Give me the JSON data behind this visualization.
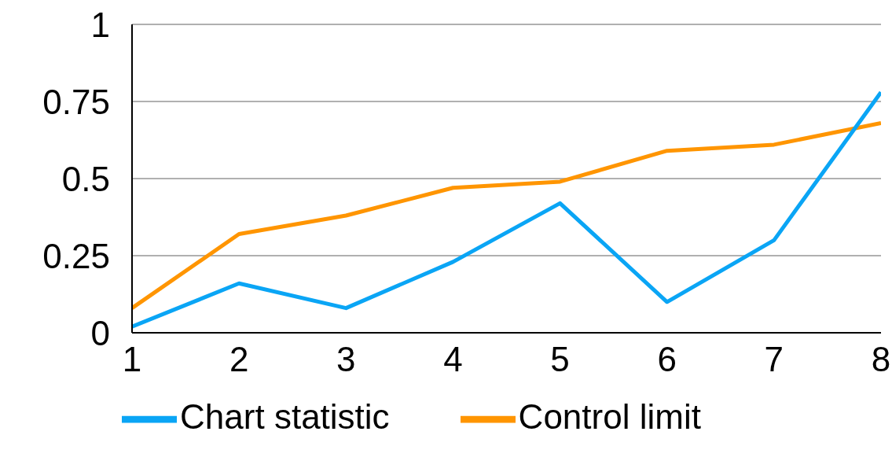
{
  "chart_data": {
    "type": "line",
    "x": [
      1,
      2,
      3,
      4,
      5,
      6,
      7,
      8
    ],
    "series": [
      {
        "name": "Control limit",
        "color": "#ff9500",
        "values": [
          0.08,
          0.32,
          0.38,
          0.47,
          0.49,
          0.59,
          0.61,
          0.68
        ]
      },
      {
        "name": "Chart statistic",
        "color": "#0aa5f5",
        "values": [
          0.02,
          0.16,
          0.08,
          0.23,
          0.42,
          0.1,
          0.3,
          0.78
        ]
      }
    ],
    "xlim": [
      1,
      8
    ],
    "xticks": [
      1,
      2,
      3,
      4,
      5,
      6,
      7,
      8
    ],
    "ylim": [
      0,
      1
    ],
    "yticks": [
      0,
      0.25,
      0.5,
      0.75,
      1
    ],
    "grid": "y",
    "legend": "bottom",
    "marker": "none",
    "line_style": "solid"
  }
}
